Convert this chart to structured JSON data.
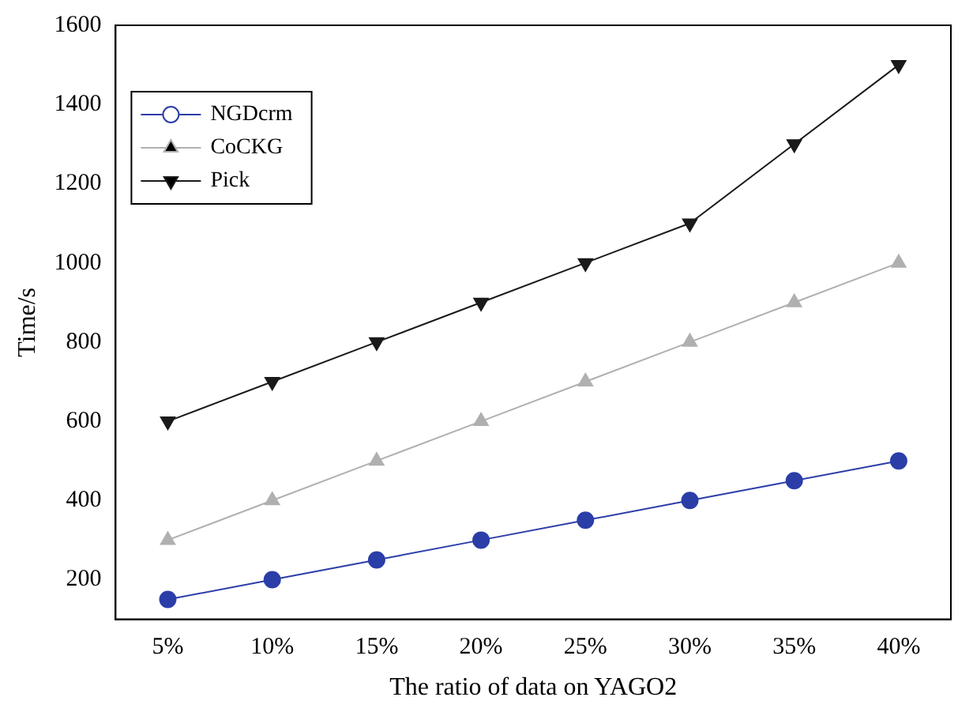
{
  "chart_data": {
    "type": "line",
    "xlabel": "The ratio of data on YAGO2",
    "ylabel": "Time/s",
    "categories": [
      "5%",
      "10%",
      "15%",
      "20%",
      "25%",
      "30%",
      "35%",
      "40%"
    ],
    "series": [
      {
        "name": "NGDcrm",
        "color": "#2b3ea8",
        "marker": "circle",
        "values": [
          150,
          200,
          250,
          300,
          350,
          400,
          450,
          500
        ]
      },
      {
        "name": "CoCKG",
        "color": "#b0b0b0",
        "marker": "triangle",
        "values": [
          300,
          400,
          500,
          600,
          700,
          800,
          900,
          1000
        ]
      },
      {
        "name": "Pick",
        "color": "#1a1a1a",
        "marker": "triangle-down",
        "values": [
          600,
          700,
          800,
          900,
          1000,
          1100,
          1300,
          1500
        ]
      }
    ],
    "ylim": [
      100,
      1600
    ],
    "yticks": [
      200,
      400,
      600,
      800,
      1000,
      1200,
      1400,
      1600
    ],
    "grid": false,
    "legend": "top left",
    "line_style": "solid"
  }
}
